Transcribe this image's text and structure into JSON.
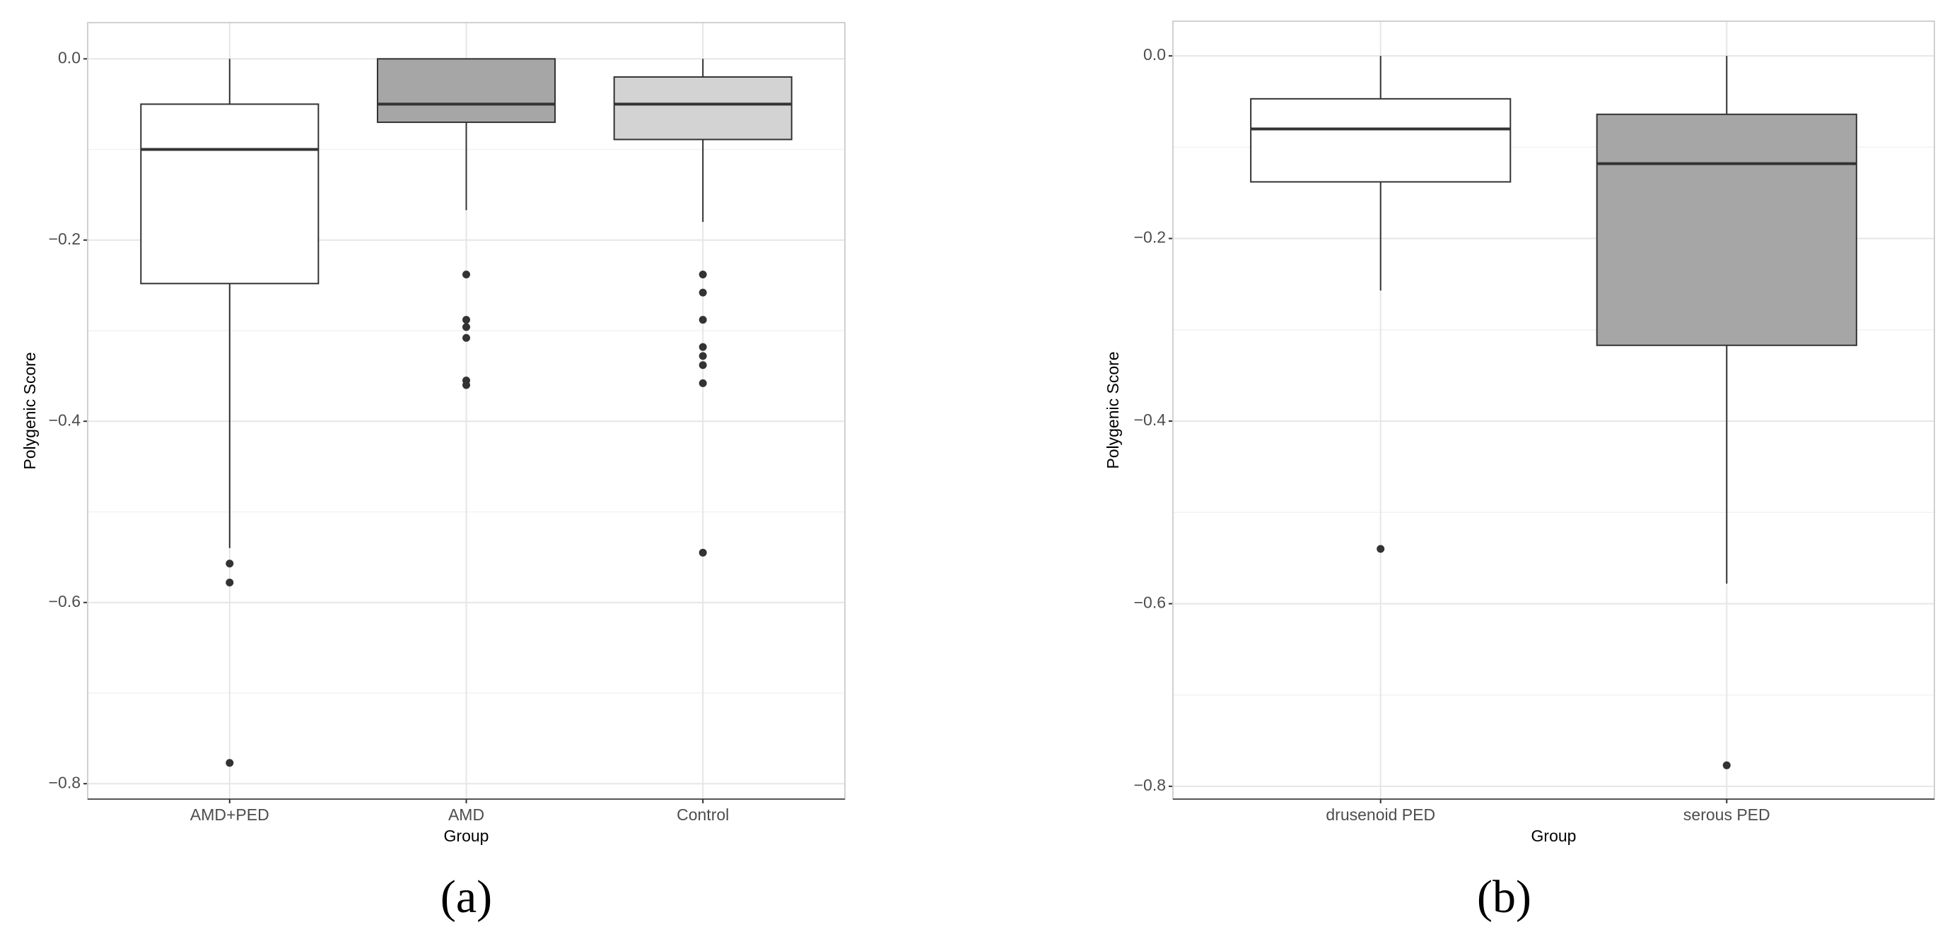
{
  "chart_data": [
    {
      "type": "boxplot",
      "caption": "(a)",
      "xlabel": "Group",
      "ylabel": "Polygenic Score",
      "categories": [
        "AMD+PED",
        "AMD",
        "Control"
      ],
      "colors": [
        "#ffffff",
        "#a6a6a6",
        "#d3d3d3"
      ],
      "boxes": [
        {
          "whisker_low": -0.54,
          "q1": -0.248,
          "median": -0.1,
          "q3": -0.05,
          "whisker_high": 0,
          "outliers": [
            -0.557,
            -0.578,
            -0.777
          ]
        },
        {
          "whisker_low": -0.167,
          "q1": -0.07,
          "median": -0.05,
          "q3": 0,
          "whisker_high": 0,
          "outliers": [
            -0.238,
            -0.288,
            -0.296,
            -0.308,
            -0.355,
            -0.36
          ]
        },
        {
          "whisker_low": -0.18,
          "q1": -0.089,
          "median": -0.05,
          "q3": -0.02,
          "whisker_high": 0,
          "outliers": [
            -0.238,
            -0.258,
            -0.288,
            -0.318,
            -0.328,
            -0.338,
            -0.358,
            -0.545
          ]
        }
      ],
      "ylim": [
        -0.817,
        0.04
      ],
      "yticks": [
        {
          "value": 0,
          "label": "0.0"
        },
        {
          "value": -0.2,
          "label": "−0.2"
        },
        {
          "value": -0.4,
          "label": "−0.4"
        },
        {
          "value": -0.6,
          "label": "−0.6"
        },
        {
          "value": -0.8,
          "label": "−0.8"
        }
      ],
      "grid": true
    },
    {
      "type": "boxplot",
      "caption": "(b)",
      "xlabel": "Group",
      "ylabel": "Polygenic Score",
      "categories": [
        "drusenoid PED",
        "serous PED"
      ],
      "colors": [
        "#ffffff",
        "#a6a6a6"
      ],
      "boxes": [
        {
          "whisker_low": -0.257,
          "q1": -0.138,
          "median": -0.08,
          "q3": -0.047,
          "whisker_high": 0,
          "outliers": [
            -0.54
          ]
        },
        {
          "whisker_low": -0.578,
          "q1": -0.317,
          "median": -0.118,
          "q3": -0.064,
          "whisker_high": 0,
          "outliers": [
            -0.777
          ]
        }
      ],
      "ylim": [
        -0.814,
        0.038
      ],
      "yticks": [
        {
          "value": 0,
          "label": "0.0"
        },
        {
          "value": -0.2,
          "label": "−0.2"
        },
        {
          "value": -0.4,
          "label": "−0.4"
        },
        {
          "value": -0.6,
          "label": "−0.6"
        },
        {
          "value": -0.8,
          "label": "−0.8"
        }
      ],
      "grid": true
    }
  ]
}
